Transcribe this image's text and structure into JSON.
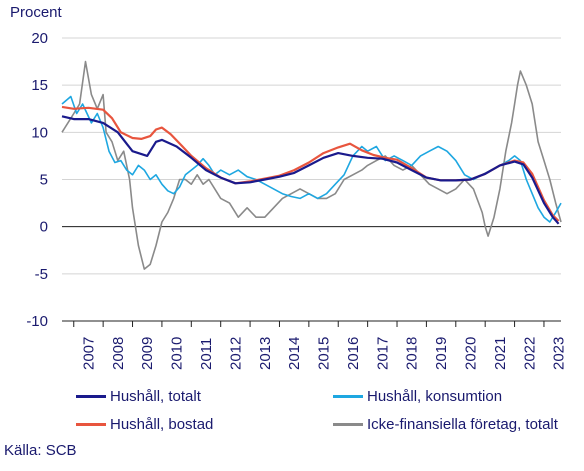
{
  "chart_data": {
    "type": "line",
    "ylabel": "Procent",
    "ylim": [
      -10,
      20
    ],
    "y_ticks": [
      20,
      15,
      10,
      5,
      0,
      -5,
      -10
    ],
    "xlim": [
      2006.6,
      2023.58
    ],
    "x_ticks": [
      "2007",
      "2008",
      "2009",
      "2010",
      "2011",
      "2012",
      "2013",
      "2014",
      "2015",
      "2016",
      "2017",
      "2018",
      "2019",
      "2020",
      "2021",
      "2022",
      "2023"
    ],
    "grid": "horizontal",
    "legend_position": "bottom",
    "source": "Källa: SCB",
    "series": [
      {
        "name": "Hushåll, totalt",
        "color": "#1a1a8c",
        "x": [
          2006.6,
          2007.0,
          2007.5,
          2008.0,
          2008.5,
          2009.0,
          2009.5,
          2009.8,
          2010.0,
          2010.5,
          2011.0,
          2011.5,
          2012.0,
          2012.5,
          2013.0,
          2013.5,
          2014.0,
          2014.5,
          2015.0,
          2015.5,
          2016.0,
          2016.5,
          2017.0,
          2017.5,
          2018.0,
          2018.5,
          2019.0,
          2019.5,
          2020.0,
          2020.5,
          2021.0,
          2021.5,
          2022.0,
          2022.3,
          2022.6,
          2023.0,
          2023.3,
          2023.5
        ],
        "y": [
          11.7,
          11.4,
          11.4,
          11.0,
          10.0,
          8.0,
          7.5,
          9.0,
          9.2,
          8.5,
          7.3,
          6.0,
          5.2,
          4.6,
          4.7,
          5.0,
          5.3,
          5.7,
          6.5,
          7.3,
          7.8,
          7.5,
          7.3,
          7.2,
          6.8,
          6.0,
          5.2,
          4.9,
          4.9,
          5.0,
          5.6,
          6.5,
          6.9,
          6.6,
          5.2,
          2.5,
          1.0,
          0.3
        ]
      },
      {
        "name": "Hushåll, konsumtion",
        "color": "#1ea7e1",
        "x": [
          2006.6,
          2006.9,
          2007.1,
          2007.3,
          2007.6,
          2007.8,
          2008.0,
          2008.2,
          2008.4,
          2008.6,
          2008.8,
          2009.0,
          2009.2,
          2009.4,
          2009.6,
          2009.8,
          2010.0,
          2010.2,
          2010.4,
          2010.6,
          2010.8,
          2011.0,
          2011.2,
          2011.4,
          2011.6,
          2011.8,
          2012.0,
          2012.3,
          2012.6,
          2012.9,
          2013.2,
          2013.5,
          2013.8,
          2014.1,
          2014.4,
          2014.7,
          2015.0,
          2015.3,
          2015.6,
          2015.9,
          2016.2,
          2016.5,
          2016.8,
          2017.0,
          2017.3,
          2017.6,
          2017.9,
          2018.2,
          2018.5,
          2018.8,
          2019.1,
          2019.4,
          2019.7,
          2020.0,
          2020.3,
          2020.6,
          2020.9,
          2021.2,
          2021.5,
          2021.8,
          2022.0,
          2022.2,
          2022.4,
          2022.6,
          2022.8,
          2023.0,
          2023.2,
          2023.4,
          2023.58
        ],
        "y": [
          13.0,
          13.8,
          12.0,
          13.0,
          11.0,
          12.0,
          10.5,
          8.0,
          6.8,
          7.0,
          6.0,
          5.5,
          6.5,
          6.0,
          5.0,
          5.5,
          4.5,
          3.8,
          3.5,
          4.2,
          5.5,
          6.0,
          6.5,
          7.2,
          6.5,
          5.5,
          6.0,
          5.5,
          6.0,
          5.3,
          5.0,
          4.5,
          4.0,
          3.5,
          3.2,
          3.0,
          3.5,
          3.0,
          3.5,
          4.5,
          5.5,
          7.5,
          8.5,
          8.0,
          8.5,
          7.0,
          7.5,
          7.0,
          6.5,
          7.5,
          8.0,
          8.5,
          8.0,
          7.0,
          5.5,
          5.0,
          5.5,
          6.0,
          6.5,
          7.0,
          7.5,
          7.0,
          5.0,
          3.5,
          2.0,
          1.0,
          0.5,
          1.5,
          2.5
        ]
      },
      {
        "name": "Hushåll, bostad",
        "color": "#e8553e",
        "x": [
          2006.6,
          2007.0,
          2007.5,
          2008.0,
          2008.3,
          2008.6,
          2009.0,
          2009.3,
          2009.6,
          2009.8,
          2010.0,
          2010.3,
          2010.7,
          2011.0,
          2011.5,
          2012.0,
          2012.5,
          2013.0,
          2013.5,
          2014.0,
          2014.5,
          2015.0,
          2015.5,
          2016.0,
          2016.4,
          2016.8,
          2017.2,
          2017.6,
          2018.0,
          2018.5,
          2019.0,
          2019.5,
          2020.0,
          2020.5,
          2021.0,
          2021.5,
          2022.0,
          2022.3,
          2022.6,
          2023.0,
          2023.3,
          2023.5
        ],
        "y": [
          12.7,
          12.5,
          12.6,
          12.4,
          11.5,
          10.0,
          9.4,
          9.3,
          9.6,
          10.3,
          10.5,
          9.8,
          8.5,
          7.5,
          6.2,
          5.2,
          4.6,
          4.8,
          5.1,
          5.4,
          6.0,
          6.8,
          7.8,
          8.4,
          8.8,
          8.1,
          7.6,
          7.3,
          7.1,
          6.2,
          5.2,
          4.9,
          4.9,
          5.0,
          5.6,
          6.5,
          7.0,
          6.8,
          5.6,
          2.8,
          1.2,
          0.6
        ]
      },
      {
        "name": "Icke-finansiella företag, totalt",
        "color": "#8a8a8a",
        "x": [
          2006.6,
          2006.8,
          2007.0,
          2007.2,
          2007.4,
          2007.6,
          2007.8,
          2008.0,
          2008.1,
          2008.3,
          2008.5,
          2008.7,
          2008.9,
          2009.0,
          2009.2,
          2009.4,
          2009.6,
          2009.8,
          2010.0,
          2010.2,
          2010.4,
          2010.6,
          2010.8,
          2011.0,
          2011.2,
          2011.4,
          2011.6,
          2011.8,
          2012.0,
          2012.3,
          2012.6,
          2012.9,
          2013.2,
          2013.5,
          2013.8,
          2014.1,
          2014.4,
          2014.7,
          2015.0,
          2015.3,
          2015.6,
          2015.9,
          2016.2,
          2016.5,
          2016.8,
          2017.0,
          2017.3,
          2017.6,
          2017.9,
          2018.2,
          2018.5,
          2018.8,
          2019.1,
          2019.4,
          2019.7,
          2020.0,
          2020.3,
          2020.6,
          2020.9,
          2021.0,
          2021.1,
          2021.3,
          2021.5,
          2021.7,
          2021.9,
          2022.0,
          2022.1,
          2022.2,
          2022.4,
          2022.6,
          2022.8,
          2023.0,
          2023.2,
          2023.4,
          2023.58
        ],
        "y": [
          10.0,
          11.0,
          12.0,
          13.0,
          17.5,
          14.0,
          12.5,
          14.0,
          10.0,
          9.0,
          7.0,
          8.0,
          5.0,
          2.0,
          -2.0,
          -4.5,
          -4.0,
          -2.0,
          0.5,
          1.5,
          3.0,
          5.0,
          5.0,
          4.5,
          5.5,
          4.5,
          5.0,
          4.0,
          3.0,
          2.5,
          1.0,
          2.0,
          1.0,
          1.0,
          2.0,
          3.0,
          3.5,
          4.0,
          3.5,
          3.0,
          3.0,
          3.5,
          5.0,
          5.5,
          6.0,
          6.5,
          7.0,
          7.5,
          6.5,
          6.0,
          6.5,
          5.5,
          4.5,
          4.0,
          3.5,
          4.0,
          5.0,
          4.0,
          1.5,
          0.0,
          -1.0,
          1.0,
          4.0,
          8.0,
          11.0,
          13.0,
          15.0,
          16.5,
          15.0,
          13.0,
          9.0,
          7.0,
          5.0,
          2.5,
          0.5
        ]
      }
    ]
  }
}
